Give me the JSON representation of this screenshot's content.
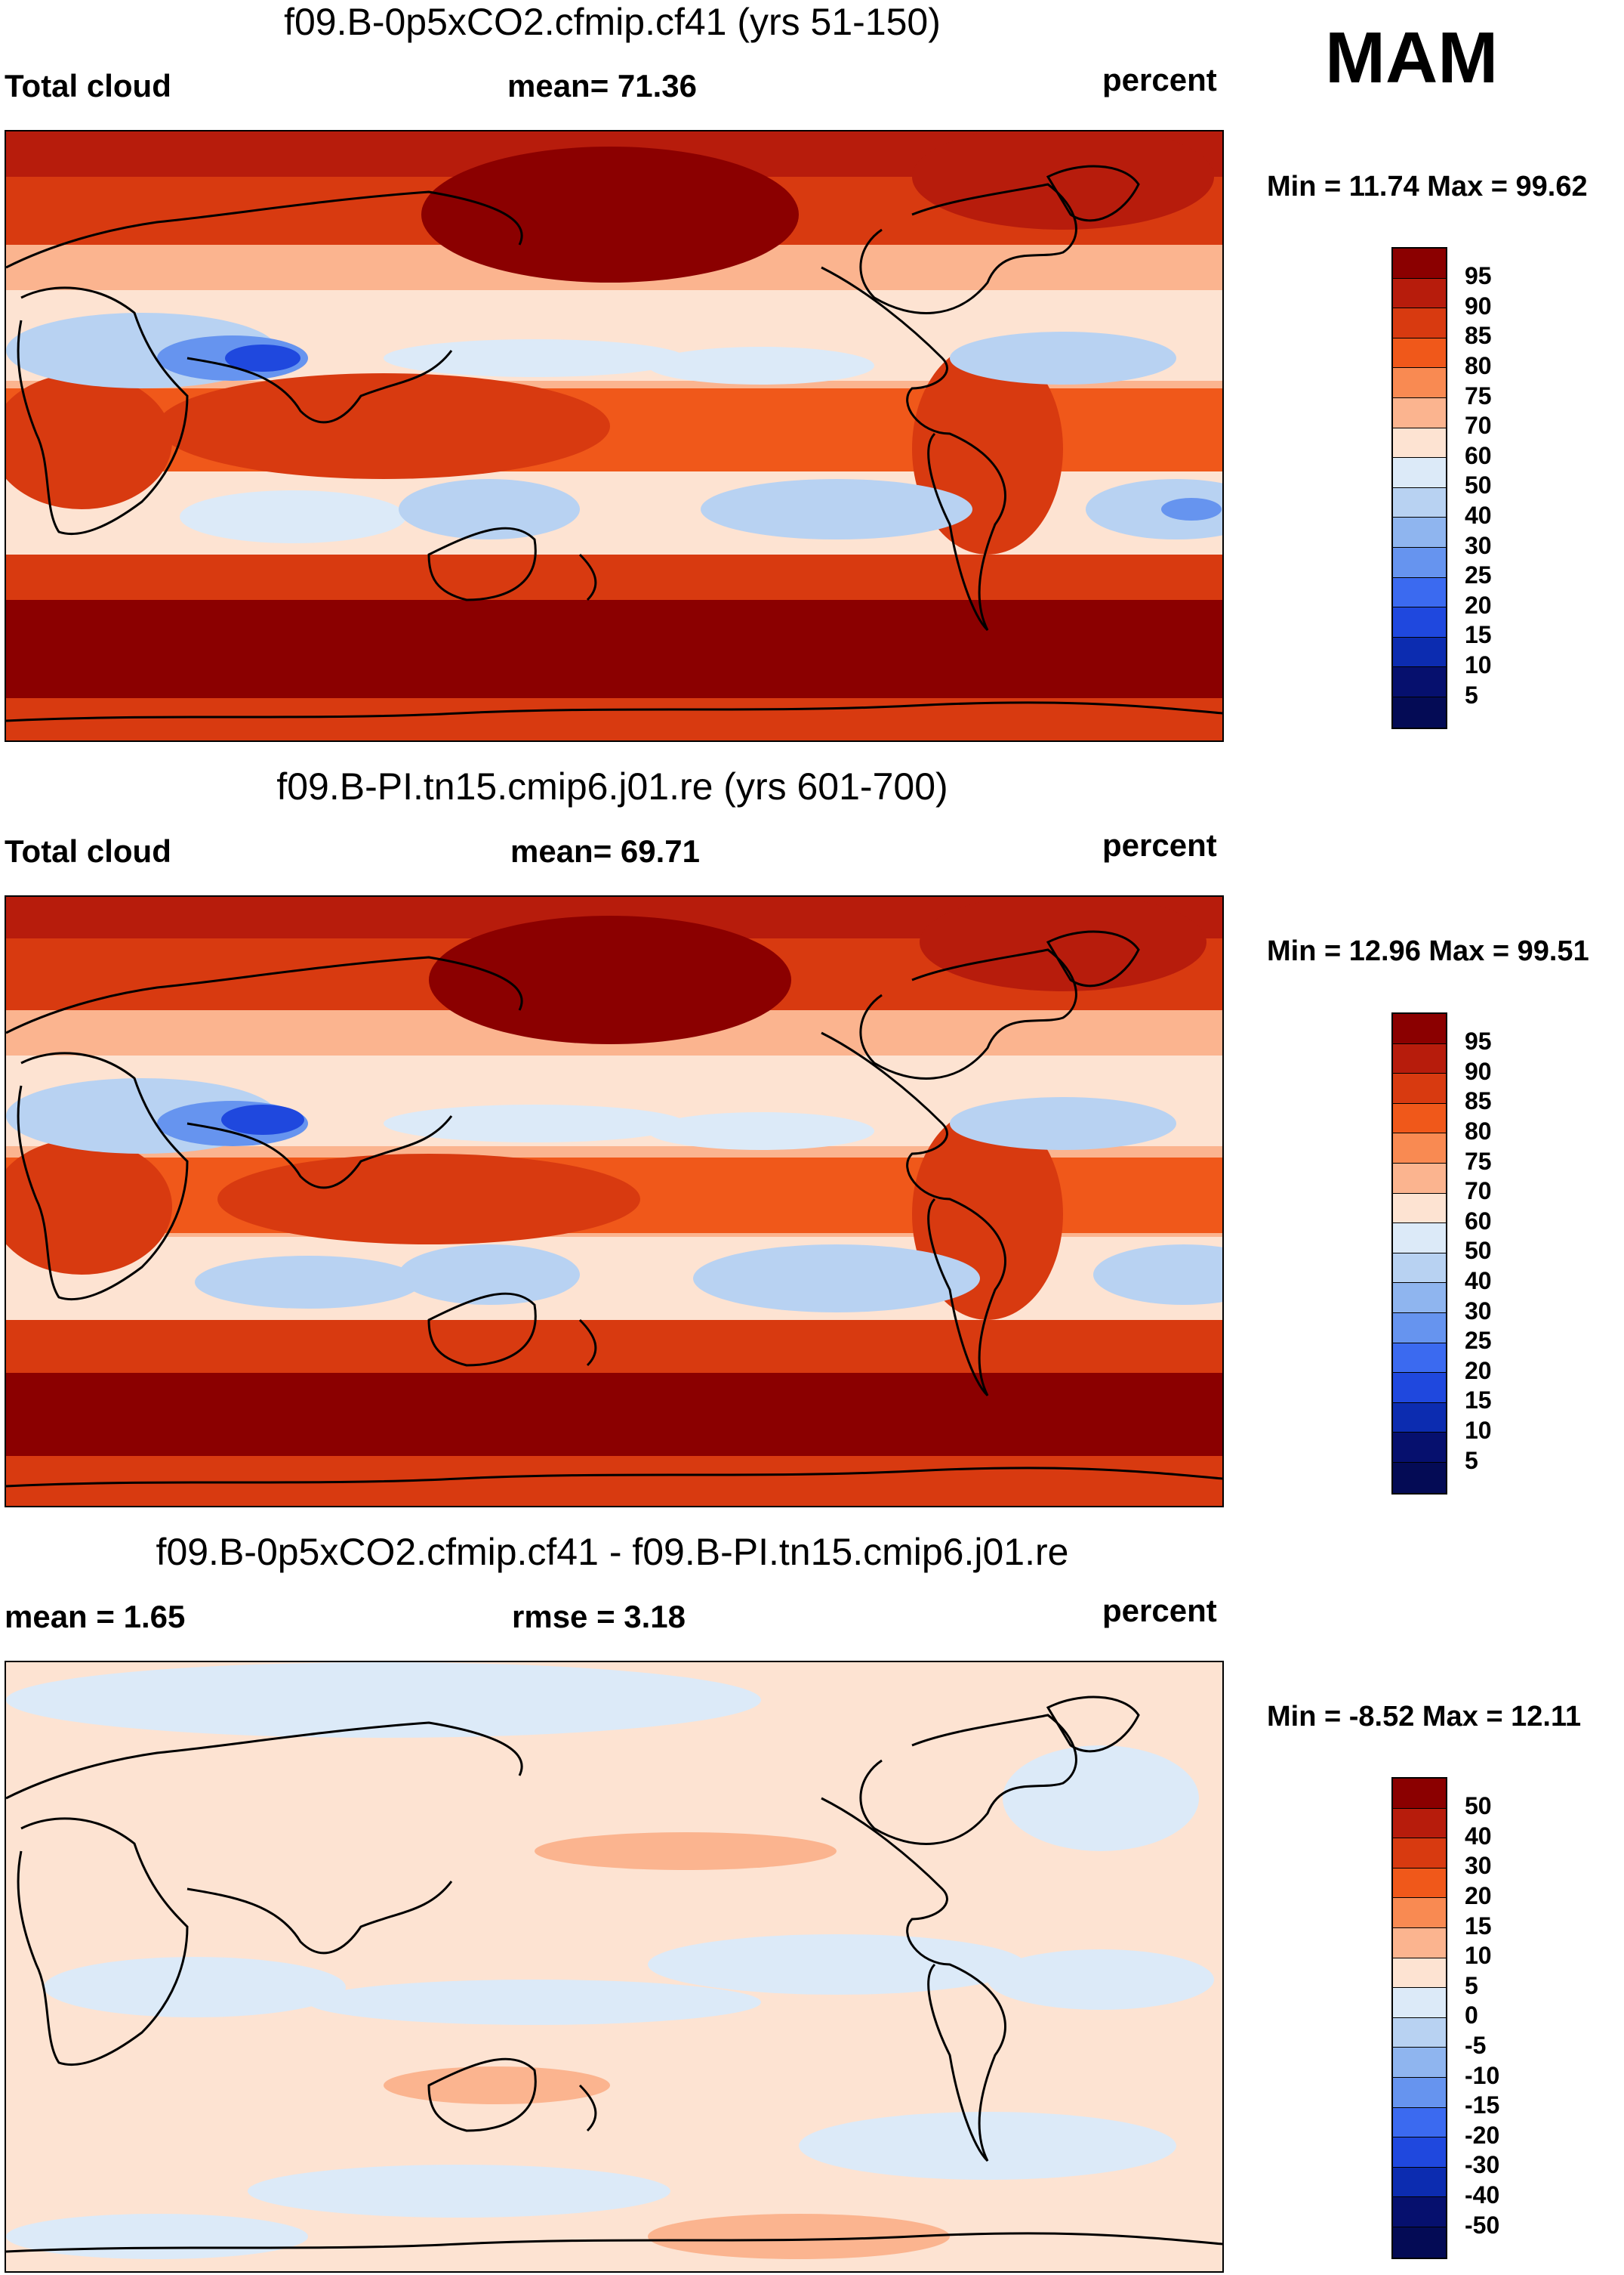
{
  "season": "MAM",
  "panels": [
    {
      "title": "f09.B-0p5xCO2.cfmip.cf41 (yrs 51-150)",
      "left_label": "Total cloud",
      "center_label": "mean=  71.36",
      "right_label": "percent",
      "minmax": "Min =  11.74 Max =  99.62",
      "colorbar": {
        "colors": [
          "#8b0000",
          "#b71c0c",
          "#d83a10",
          "#f0581a",
          "#f98a52",
          "#fbb48f",
          "#fde3d2",
          "#dceaf8",
          "#b8d2f2",
          "#8fb5ef",
          "#6694ef",
          "#3b6af0",
          "#1f48de",
          "#0c2cb0",
          "#06106e"
        ],
        "labels": [
          "95",
          "90",
          "85",
          "80",
          "75",
          "70",
          "60",
          "50",
          "40",
          "30",
          "25",
          "20",
          "15",
          "10",
          "5"
        ]
      }
    },
    {
      "title": "f09.B-PI.tn15.cmip6.j01.re (yrs 601-700)",
      "left_label": "Total cloud",
      "center_label": "mean=  69.71",
      "right_label": "percent",
      "minmax": "Min =  12.96 Max =  99.51",
      "colorbar": {
        "colors": [
          "#8b0000",
          "#b71c0c",
          "#d83a10",
          "#f0581a",
          "#f98a52",
          "#fbb48f",
          "#fde3d2",
          "#dceaf8",
          "#b8d2f2",
          "#8fb5ef",
          "#6694ef",
          "#3b6af0",
          "#1f48de",
          "#0c2cb0",
          "#06106e"
        ],
        "labels": [
          "95",
          "90",
          "85",
          "80",
          "75",
          "70",
          "60",
          "50",
          "40",
          "30",
          "25",
          "20",
          "15",
          "10",
          "5"
        ]
      }
    },
    {
      "title": "f09.B-0p5xCO2.cfmip.cf41 - f09.B-PI.tn15.cmip6.j01.re",
      "left_label": "mean =    1.65",
      "center_label": "rmse =    3.18",
      "right_label": "percent",
      "minmax": "Min =  -8.52 Max =  12.11",
      "colorbar": {
        "colors": [
          "#8b0000",
          "#b71c0c",
          "#d83a10",
          "#f0581a",
          "#f98a52",
          "#fbb48f",
          "#fde3d2",
          "#dceaf8",
          "#b8d2f2",
          "#8fb5ef",
          "#6694ef",
          "#3b6af0",
          "#1f48de",
          "#0c2cb0",
          "#06106e",
          "#040b55"
        ],
        "labels": [
          "50",
          "40",
          "30",
          "20",
          "15",
          "10",
          "5",
          "0",
          "-5",
          "-10",
          "-15",
          "-20",
          "-30",
          "-40",
          "-50"
        ]
      }
    }
  ]
}
